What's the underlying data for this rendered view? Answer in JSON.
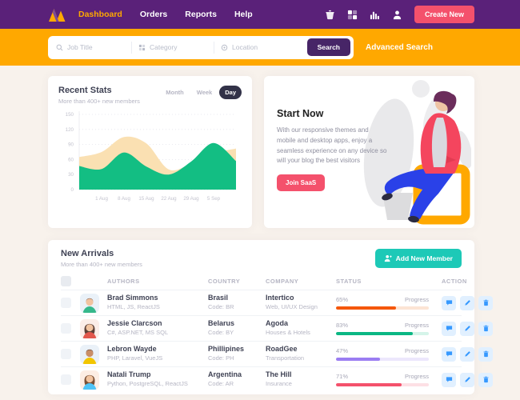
{
  "header": {
    "nav": [
      {
        "label": "Dashboard",
        "active": true
      },
      {
        "label": "Orders",
        "active": false
      },
      {
        "label": "Reports",
        "active": false
      },
      {
        "label": "Help",
        "active": false
      }
    ],
    "create_button": "Create New"
  },
  "search": {
    "fields": [
      {
        "icon": "search-icon",
        "placeholder": "Job Title"
      },
      {
        "icon": "grid-icon",
        "placeholder": "Category"
      },
      {
        "icon": "location-icon",
        "placeholder": "Location"
      }
    ],
    "button": "Search",
    "advanced_label": "Advanced Search"
  },
  "stats": {
    "title": "Recent Stats",
    "subtitle": "More than 400+ new members",
    "range_tabs": [
      {
        "label": "Month",
        "active": false
      },
      {
        "label": "Week",
        "active": false
      },
      {
        "label": "Day",
        "active": true
      }
    ]
  },
  "chart_data": {
    "type": "area",
    "title": "Recent Stats",
    "xlabel": "",
    "ylabel": "",
    "x_labels": [
      "1 Aug",
      "8 Aug",
      "15 Aug",
      "22 Aug",
      "29 Aug",
      "5 Sep"
    ],
    "y_ticks": [
      0,
      30,
      60,
      90,
      120,
      150
    ],
    "ylim": [
      0,
      150
    ],
    "grid": "dotted-horizontal",
    "legend": "none",
    "series": [
      {
        "name": "members-yellow",
        "color": "#FAE0B2",
        "values": [
          65,
          75,
          105,
          92,
          40,
          52,
          72,
          82
        ]
      },
      {
        "name": "members-green",
        "color": "#13BE83",
        "values": [
          47,
          41,
          74,
          46,
          30,
          56,
          93,
          57
        ]
      }
    ],
    "note": "8 points per series: left edge, the 6 labeled ticks, right edge"
  },
  "promo": {
    "title": "Start Now",
    "body": "With our responsive themes and mobile and desktop apps, enjoy a seamless experience on any device so will your blog the best visitors",
    "button": "Join SaaS"
  },
  "arrivals": {
    "title": "New Arrivals",
    "subtitle": "More than 400+ new members",
    "add_button": "Add New Member",
    "columns": {
      "authors": "AUTHORS",
      "country": "COUNTRY",
      "company": "COMPANY",
      "status": "STATUS",
      "action": "ACTION"
    },
    "progress_label": "Progress",
    "rows": [
      {
        "name": "Brad Simmons",
        "skills": "HTML, JS, ReactJS",
        "country": "Brasil",
        "code": "Code: BR",
        "company": "Intertico",
        "industry": "Web, UI/UX Design",
        "progress_text": "65%",
        "progress_pct": 65,
        "progress_color": "#F5570B",
        "track_color": "#FCE4D4",
        "avatar": {
          "bg": "#EAF1F8",
          "skin": "#F1C3A0",
          "hair": "#6B4A39",
          "shirt": "#35B88B",
          "side": "none"
        }
      },
      {
        "name": "Jessie Clarcson",
        "skills": "C#, ASP.NET, MS SQL",
        "country": "Belarus",
        "code": "Code: BY",
        "company": "Agoda",
        "industry": "Houses & Hotels",
        "progress_text": "83%",
        "progress_pct": 83,
        "progress_color": "#0BB783",
        "track_color": "#D5F4E9",
        "avatar": {
          "bg": "#FBEDE8",
          "skin": "#F1C3A0",
          "hair": "#5D4037",
          "shirt": "#E2574C",
          "side": "#5D4037"
        }
      },
      {
        "name": "Lebron Wayde",
        "skills": "PHP, Laravel, VueJS",
        "country": "Phillipines",
        "code": "Code: PH",
        "company": "RoadGee",
        "industry": "Transportation",
        "progress_text": "47%",
        "progress_pct": 47,
        "progress_color": "#9B7DF2",
        "track_color": "#ECE7FC",
        "avatar": {
          "bg": "#EAF1F8",
          "skin": "#C98E68",
          "hair": "#3E2723",
          "shirt": "#F2C500",
          "side": "none"
        }
      },
      {
        "name": "Natali Trump",
        "skills": "Python, PostgreSQL, ReactJS",
        "country": "Argentina",
        "code": "Code: AR",
        "company": "The Hill",
        "industry": "Insurance",
        "progress_text": "71%",
        "progress_pct": 71,
        "progress_color": "#F4516C",
        "track_color": "#FDE0E5",
        "avatar": {
          "bg": "#FDEDE4",
          "skin": "#F1C3A0",
          "hair": "#7A4F35",
          "shirt": "#4FC3F7",
          "side": "#7A4F35"
        }
      }
    ]
  },
  "colors": {
    "navbar": "#5A2179",
    "strip": "#FFA800",
    "page_bg": "#F8F2EC",
    "danger": "#F4516C",
    "teal": "#1DC9B7",
    "search_button": "#472567",
    "chart_yellow": "#FAE0B2",
    "chart_green": "#13BE83"
  }
}
